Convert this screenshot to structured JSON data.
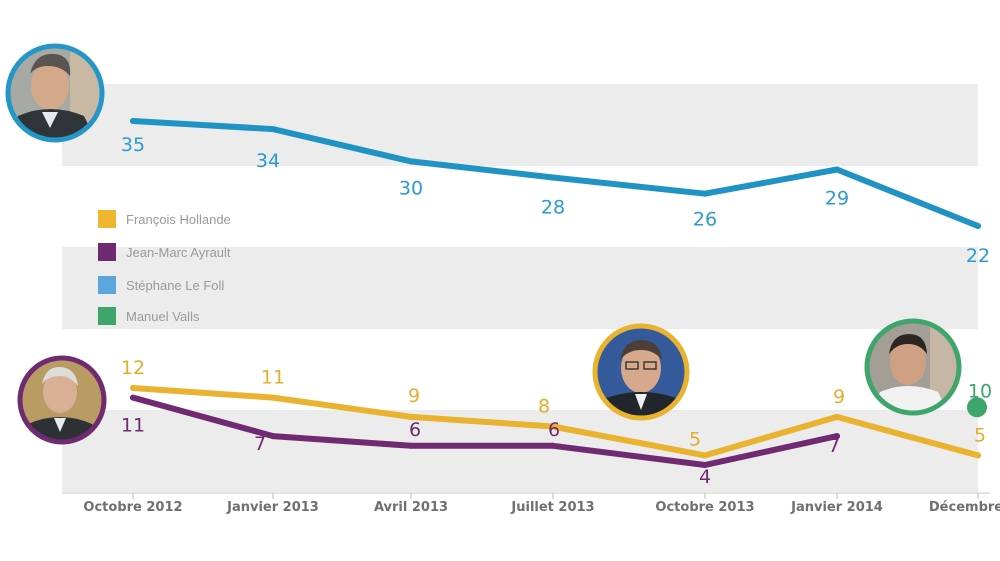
{
  "chart_data": {
    "type": "line",
    "title": "",
    "xlabel": "",
    "ylabel": "",
    "categories": [
      "Octobre 2012",
      "Janvier 2013",
      "Avril 2013",
      "Juillet 2013",
      "Octobre 2013",
      "Janvier 2014",
      "Décembre"
    ],
    "series": [
      {
        "name": "François Hollande",
        "color": "#e9b22f",
        "values": [
          12,
          11,
          9,
          8,
          5,
          9,
          5
        ],
        "portrait": "francois-hollande-portrait"
      },
      {
        "name": "Jean-Marc Ayrault",
        "color": "#6f2a72",
        "values": [
          11,
          7,
          6,
          6,
          4,
          7,
          null
        ],
        "portrait": "jean-marc-ayrault-portrait"
      },
      {
        "name": "Stéphane Le Foll",
        "color": "#1f93c3",
        "values": [
          35,
          34,
          30,
          28,
          26,
          29,
          22
        ],
        "portrait": "stephane-le-foll-portrait"
      },
      {
        "name": "Manuel Valls",
        "color": "#3fa66b",
        "values": [
          null,
          null,
          null,
          null,
          null,
          null,
          10
        ],
        "portrait": "manuel-valls-portrait"
      }
    ],
    "legend_position": "middle-left",
    "grid": false
  }
}
